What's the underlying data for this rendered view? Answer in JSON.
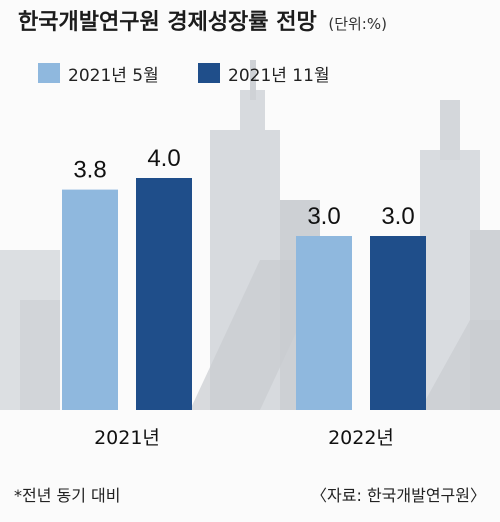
{
  "title": "한국개발연구원 경제성장률 전망",
  "unit": "(단위:%)",
  "footnote": "*전년 동기 대비",
  "source": "〈자료: 한국개발연구원〉",
  "colors": {
    "series1": "#8fb8de",
    "series2": "#1f4e8a",
    "background_buildings": "#cfd2d6"
  },
  "chart_data": {
    "type": "bar",
    "categories": [
      "2021년",
      "2022년"
    ],
    "series": [
      {
        "name": "2021년 5월",
        "values": [
          3.8,
          3.0
        ]
      },
      {
        "name": "2021년 11월",
        "values": [
          4.0,
          3.0
        ]
      }
    ],
    "value_labels": [
      [
        "3.8",
        "3.0"
      ],
      [
        "4.0",
        "3.0"
      ]
    ],
    "legend_position": "top-left",
    "grid": false
  }
}
